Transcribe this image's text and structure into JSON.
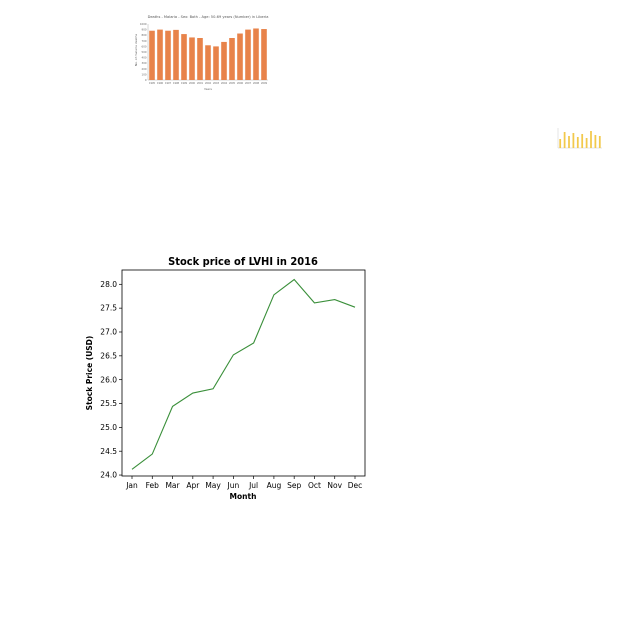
{
  "chart_data": [
    {
      "type": "line",
      "title": "Stock price of LVHI in 2016",
      "xlabel": "Month",
      "ylabel": "Stock Price (USD)",
      "categories": [
        "Jan",
        "Feb",
        "Mar",
        "Apr",
        "May",
        "Jun",
        "Jul",
        "Aug",
        "Sep",
        "Oct",
        "Nov",
        "Dec"
      ],
      "series": [
        {
          "values": [
            24.12,
            24.44,
            25.44,
            25.72,
            25.81,
            26.52,
            26.77,
            27.78,
            28.1,
            27.61,
            27.68,
            27.52
          ]
        }
      ],
      "ylim": [
        23.98,
        28.3
      ],
      "yticks": [
        "24.0",
        "24.5",
        "25.0",
        "25.5",
        "26.0",
        "26.5",
        "27.0",
        "27.5",
        "28.0"
      ],
      "grid": false,
      "line_color": "#3a8f3a"
    },
    {
      "type": "bar",
      "title": "Deaths - Malaria - Sex: Both - Age: 50-69 years (Number) in Liberia",
      "xlabel": "Years",
      "ylabel": "No. of malaria deaths",
      "categories": [
        "1995",
        "1996",
        "1997",
        "1998",
        "1999",
        "2000",
        "2001",
        "2002",
        "2003",
        "2004",
        "2005",
        "2006",
        "2007",
        "2008",
        "2009"
      ],
      "values": [
        880,
        900,
        880,
        895,
        820,
        760,
        750,
        620,
        600,
        680,
        750,
        830,
        900,
        920,
        910
      ],
      "ylim": [
        0,
        1000
      ],
      "yticks": [
        "0",
        "100",
        "200",
        "300",
        "400",
        "500",
        "600",
        "700",
        "800",
        "900",
        "1000"
      ],
      "bar_color": "#e8834a"
    },
    {
      "type": "bar",
      "values": [
        0.45,
        0.8,
        0.6,
        0.75,
        0.55,
        0.7,
        0.5,
        0.85,
        0.65,
        0.6
      ],
      "bar_color": "#f2c94c"
    }
  ]
}
